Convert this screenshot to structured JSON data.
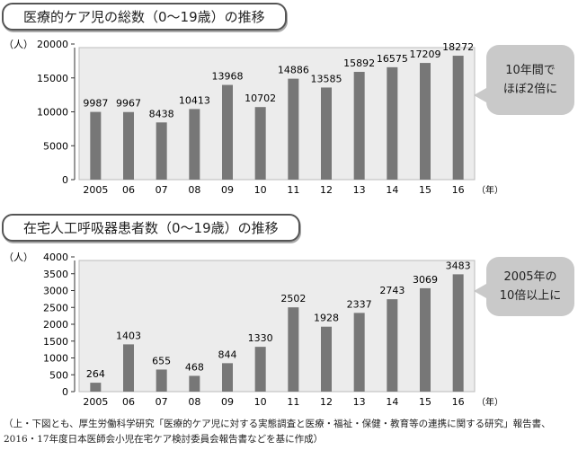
{
  "chart_data": [
    {
      "type": "bar",
      "title": "医療的ケア児の総数（0〜19歳）の推移",
      "unit_label": "（人）",
      "x_unit": "（年）",
      "categories": [
        "2005",
        "06",
        "07",
        "08",
        "09",
        "10",
        "11",
        "12",
        "13",
        "14",
        "15",
        "16"
      ],
      "values": [
        9987,
        9967,
        8438,
        10413,
        13968,
        10702,
        14886,
        13585,
        15892,
        16575,
        17209,
        18272
      ],
      "yticks": [
        0,
        5000,
        10000,
        15000,
        20000
      ],
      "ylim": [
        0,
        20000
      ],
      "callout": [
        "10年間で",
        "ほぼ2倍に"
      ]
    },
    {
      "type": "bar",
      "title": "在宅人工呼吸器患者数（0〜19歳）の推移",
      "unit_label": "（人）",
      "x_unit": "（年）",
      "categories": [
        "2005",
        "06",
        "07",
        "08",
        "09",
        "10",
        "11",
        "12",
        "13",
        "14",
        "15",
        "16"
      ],
      "values": [
        264,
        1403,
        655,
        468,
        844,
        1330,
        2502,
        1928,
        2337,
        2743,
        3069,
        3483
      ],
      "yticks": [
        0,
        500,
        1000,
        1500,
        2000,
        2500,
        3000,
        3500,
        4000
      ],
      "ylim": [
        0,
        4000
      ],
      "callout": [
        "2005年の",
        "10倍以上に"
      ]
    }
  ],
  "footnote": [
    "（上・下図とも、厚生労働科学研究「医療的ケア児に対する実態調査と医療・福祉・保健・教育等の連携に関する研究」報告書、",
    "2016・17年度日本医師会小児在宅ケア検討委員会報告書などを基に作成）"
  ],
  "colors": {
    "bar": "#777777",
    "plot_bg": "#ececec",
    "callout": "#c9c9c9"
  }
}
